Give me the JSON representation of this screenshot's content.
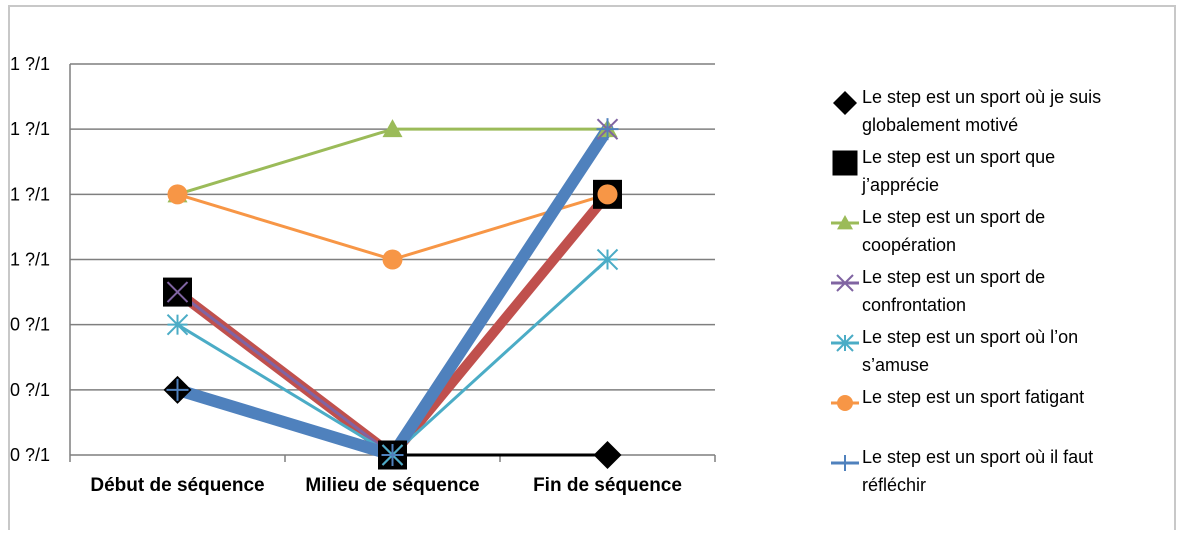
{
  "chart_data": {
    "type": "line",
    "title": "",
    "xlabel": "",
    "ylabel": "",
    "categories": [
      "Début de séquence",
      "Milieu de séquence",
      "Fin de séquence"
    ],
    "y_tick_labels": [
      "0 ?/1",
      "0 ?/1",
      "0 ?/1",
      "1 ?/1",
      "1 ?/1",
      "1 ?/1",
      "1 ?/1"
    ],
    "ylim": [
      0,
      6
    ],
    "grid": true,
    "legend_position": "right",
    "series": [
      {
        "name": "Le step est un sport où je suis globalement motivé",
        "values": [
          1,
          0,
          0
        ],
        "color": "#000000",
        "marker": "diamond"
      },
      {
        "name": "Le step est un sport que j’apprécie",
        "values": [
          2.5,
          0,
          4
        ],
        "color": "#c0504d",
        "marker": "square"
      },
      {
        "name": "Le step est un sport de coopération",
        "values": [
          4,
          5,
          5
        ],
        "color": "#9bbb59",
        "marker": "triangle"
      },
      {
        "name": "Le step est un sport de confrontation",
        "values": [
          2.5,
          0,
          5
        ],
        "color": "#8064a2",
        "marker": "x"
      },
      {
        "name": "Le step est un sport où l’on s’amuse",
        "values": [
          2,
          0,
          3
        ],
        "color": "#4bacc6",
        "marker": "star"
      },
      {
        "name": "Le step est un sport fatigant",
        "values": [
          4,
          3,
          4
        ],
        "color": "#f79646",
        "marker": "circle"
      },
      {
        "name": "Le step est un sport où il faut réfléchir",
        "values": [
          1,
          0,
          5
        ],
        "color": "#4f81bd",
        "marker": "plus"
      }
    ]
  }
}
